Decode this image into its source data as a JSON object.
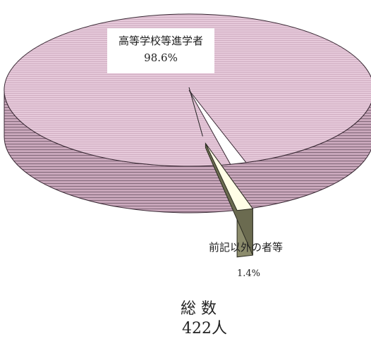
{
  "chart_data": {
    "type": "pie",
    "slices": [
      {
        "label": "高等学校等進学者",
        "percent_label": "98.6%",
        "value": 98.6,
        "color": "#e3c4d6",
        "side_color": "#b898aa"
      },
      {
        "label": "前記以外の者等",
        "percent_label": "1.4%",
        "value": 1.4,
        "color": "#fffde6",
        "side_color": "#8c8c6c"
      }
    ],
    "total_title": "総 数",
    "total_value": "422人"
  }
}
